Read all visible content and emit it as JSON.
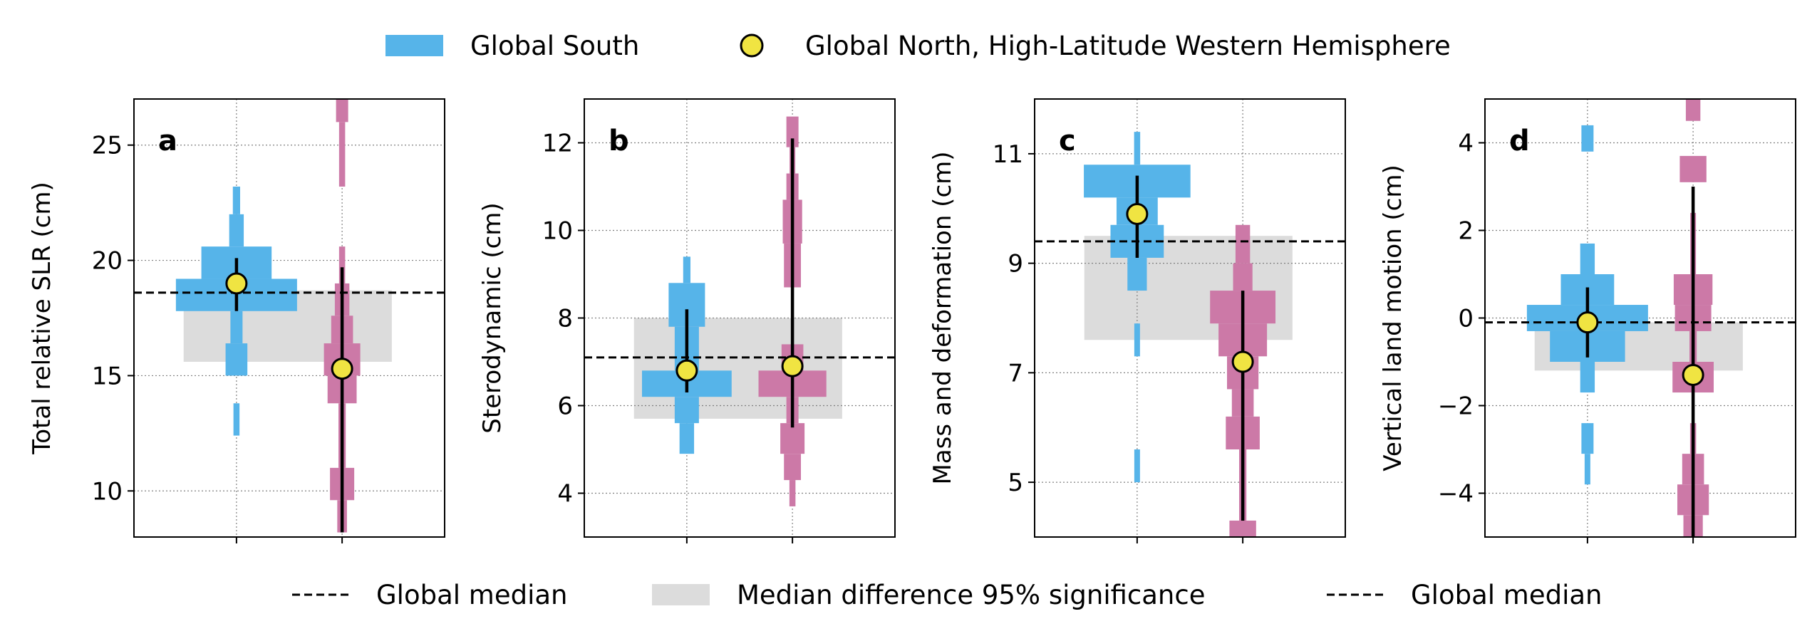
{
  "legend_top": {
    "global_south": "Global South",
    "global_north": "Global North, High-Latitude Western Hemisphere"
  },
  "legend_bottom": {
    "global_median_1": "Global median",
    "significance": "Median difference 95% significance",
    "global_median_2": "Global median"
  },
  "colors": {
    "south": "#56b4e9",
    "north": "#cc79a7",
    "marker_fill": "#f0e442",
    "band": "#dcdcdc",
    "median_line": "#000000",
    "grid": "#808080"
  },
  "chart_data": [
    {
      "type": "violin-histogram",
      "panel_label": "a",
      "ylabel": "Total relative SLR (cm)",
      "ylim": [
        8,
        27
      ],
      "yticks": [
        10,
        15,
        20,
        25
      ],
      "global_median": 18.6,
      "significance_band": [
        15.6,
        18.7
      ],
      "groups": [
        {
          "name": "Global South",
          "median": 19.0,
          "range": [
            17.8,
            20.1
          ],
          "bins": [
            {
              "lo": 22.0,
              "hi": 23.2,
              "w": 0.06
            },
            {
              "lo": 20.6,
              "hi": 22.0,
              "w": 0.12
            },
            {
              "lo": 19.2,
              "hi": 20.6,
              "w": 0.58
            },
            {
              "lo": 17.8,
              "hi": 19.2,
              "w": 1.0
            },
            {
              "lo": 16.4,
              "hi": 17.8,
              "w": 0.1
            },
            {
              "lo": 15.0,
              "hi": 16.4,
              "w": 0.18
            },
            {
              "lo": 12.4,
              "hi": 13.8,
              "w": 0.05
            }
          ]
        },
        {
          "name": "Global North, High-Latitude Western Hemisphere",
          "median": 15.3,
          "range": [
            8.2,
            19.7
          ],
          "bins": [
            {
              "lo": 26.0,
              "hi": 27.0,
              "w": 0.1
            },
            {
              "lo": 23.2,
              "hi": 26.0,
              "w": 0.05
            },
            {
              "lo": 19.0,
              "hi": 20.6,
              "w": 0.05
            },
            {
              "lo": 17.6,
              "hi": 19.0,
              "w": 0.12
            },
            {
              "lo": 16.4,
              "hi": 17.6,
              "w": 0.18
            },
            {
              "lo": 15.0,
              "hi": 16.4,
              "w": 0.3
            },
            {
              "lo": 13.8,
              "hi": 15.0,
              "w": 0.24
            },
            {
              "lo": 11.0,
              "hi": 13.8,
              "w": 0.06
            },
            {
              "lo": 9.6,
              "hi": 11.0,
              "w": 0.2
            },
            {
              "lo": 8.2,
              "hi": 9.6,
              "w": 0.08
            }
          ]
        }
      ]
    },
    {
      "type": "violin-histogram",
      "panel_label": "b",
      "ylabel": "Sterodynamic (cm)",
      "ylim": [
        3,
        13
      ],
      "yticks": [
        4,
        6,
        8,
        10,
        12
      ],
      "global_median": 7.1,
      "significance_band": [
        5.7,
        8.0
      ],
      "groups": [
        {
          "name": "Global South",
          "median": 6.8,
          "range": [
            6.3,
            8.2
          ],
          "bins": [
            {
              "lo": 8.8,
              "hi": 9.4,
              "w": 0.06
            },
            {
              "lo": 7.8,
              "hi": 8.8,
              "w": 0.3
            },
            {
              "lo": 6.8,
              "hi": 7.8,
              "w": 0.2
            },
            {
              "lo": 6.2,
              "hi": 6.8,
              "w": 0.74
            },
            {
              "lo": 5.6,
              "hi": 6.2,
              "w": 0.2
            },
            {
              "lo": 4.9,
              "hi": 5.6,
              "w": 0.12
            }
          ]
        },
        {
          "name": "Global North, High-Latitude Western Hemisphere",
          "median": 6.9,
          "range": [
            5.5,
            12.1
          ],
          "bins": [
            {
              "lo": 11.9,
              "hi": 12.6,
              "w": 0.1
            },
            {
              "lo": 11.3,
              "hi": 11.9,
              "w": 0.04
            },
            {
              "lo": 10.7,
              "hi": 11.3,
              "w": 0.1
            },
            {
              "lo": 9.7,
              "hi": 10.7,
              "w": 0.16
            },
            {
              "lo": 8.7,
              "hi": 9.7,
              "w": 0.14
            },
            {
              "lo": 6.8,
              "hi": 7.4,
              "w": 0.18
            },
            {
              "lo": 6.2,
              "hi": 6.8,
              "w": 0.56
            },
            {
              "lo": 5.6,
              "hi": 6.2,
              "w": 0.1
            },
            {
              "lo": 4.9,
              "hi": 5.6,
              "w": 0.2
            },
            {
              "lo": 4.3,
              "hi": 4.9,
              "w": 0.14
            },
            {
              "lo": 3.7,
              "hi": 4.3,
              "w": 0.05
            }
          ]
        }
      ]
    },
    {
      "type": "violin-histogram",
      "panel_label": "c",
      "ylabel": "Mass and deformation (cm)",
      "ylim": [
        4,
        12
      ],
      "yticks": [
        5,
        7,
        9,
        11
      ],
      "global_median": 9.4,
      "significance_band": [
        7.6,
        9.5
      ],
      "groups": [
        {
          "name": "Global South",
          "median": 9.9,
          "range": [
            9.1,
            10.6
          ],
          "bins": [
            {
              "lo": 10.8,
              "hi": 11.4,
              "w": 0.05
            },
            {
              "lo": 10.2,
              "hi": 10.8,
              "w": 0.88
            },
            {
              "lo": 9.7,
              "hi": 10.2,
              "w": 0.34
            },
            {
              "lo": 9.1,
              "hi": 9.7,
              "w": 0.44
            },
            {
              "lo": 8.5,
              "hi": 9.1,
              "w": 0.16
            },
            {
              "lo": 7.3,
              "hi": 7.9,
              "w": 0.04
            },
            {
              "lo": 5.0,
              "hi": 5.6,
              "w": 0.04
            }
          ]
        },
        {
          "name": "Global North, High-Latitude Western Hemisphere",
          "median": 7.2,
          "range": [
            4.3,
            8.5
          ],
          "bins": [
            {
              "lo": 9.0,
              "hi": 9.7,
              "w": 0.12
            },
            {
              "lo": 8.5,
              "hi": 9.0,
              "w": 0.16
            },
            {
              "lo": 7.9,
              "hi": 8.5,
              "w": 0.54
            },
            {
              "lo": 7.3,
              "hi": 7.9,
              "w": 0.4
            },
            {
              "lo": 6.7,
              "hi": 7.3,
              "w": 0.26
            },
            {
              "lo": 6.2,
              "hi": 6.7,
              "w": 0.18
            },
            {
              "lo": 5.6,
              "hi": 6.2,
              "w": 0.28
            },
            {
              "lo": 4.3,
              "hi": 5.6,
              "w": 0.06
            },
            {
              "lo": 4.0,
              "hi": 4.3,
              "w": 0.22
            }
          ]
        }
      ]
    },
    {
      "type": "violin-histogram",
      "panel_label": "d",
      "ylabel": "Vertical land motion (cm)",
      "ylim": [
        -5,
        5
      ],
      "yticks": [
        -4,
        -2,
        0,
        2,
        4
      ],
      "global_median": -0.1,
      "significance_band": [
        -1.2,
        -0.1
      ],
      "groups": [
        {
          "name": "Global South",
          "median": -0.1,
          "range": [
            -0.9,
            0.7
          ],
          "bins": [
            {
              "lo": 3.8,
              "hi": 4.4,
              "w": 0.1
            },
            {
              "lo": 1.0,
              "hi": 1.7,
              "w": 0.12
            },
            {
              "lo": 0.3,
              "hi": 1.0,
              "w": 0.44
            },
            {
              "lo": -0.3,
              "hi": 0.3,
              "w": 1.0
            },
            {
              "lo": -1.0,
              "hi": -0.3,
              "w": 0.62
            },
            {
              "lo": -1.7,
              "hi": -1.0,
              "w": 0.12
            },
            {
              "lo": -3.1,
              "hi": -2.4,
              "w": 0.1
            },
            {
              "lo": -3.8,
              "hi": -3.1,
              "w": 0.04
            }
          ]
        },
        {
          "name": "Global North, High-Latitude Western Hemisphere",
          "median": -1.3,
          "range": [
            -5.0,
            3.0
          ],
          "bins": [
            {
              "lo": 4.5,
              "hi": 5.0,
              "w": 0.12
            },
            {
              "lo": 3.1,
              "hi": 3.7,
              "w": 0.22
            },
            {
              "lo": 1.0,
              "hi": 2.4,
              "w": 0.04
            },
            {
              "lo": 0.3,
              "hi": 1.0,
              "w": 0.32
            },
            {
              "lo": -0.3,
              "hi": 0.3,
              "w": 0.3
            },
            {
              "lo": -1.0,
              "hi": -0.3,
              "w": 0.06
            },
            {
              "lo": -1.7,
              "hi": -1.0,
              "w": 0.34
            },
            {
              "lo": -3.1,
              "hi": -2.4,
              "w": 0.05
            },
            {
              "lo": -3.8,
              "hi": -3.1,
              "w": 0.18
            },
            {
              "lo": -4.5,
              "hi": -3.8,
              "w": 0.26
            },
            {
              "lo": -5.0,
              "hi": -4.5,
              "w": 0.16
            }
          ]
        }
      ]
    }
  ]
}
